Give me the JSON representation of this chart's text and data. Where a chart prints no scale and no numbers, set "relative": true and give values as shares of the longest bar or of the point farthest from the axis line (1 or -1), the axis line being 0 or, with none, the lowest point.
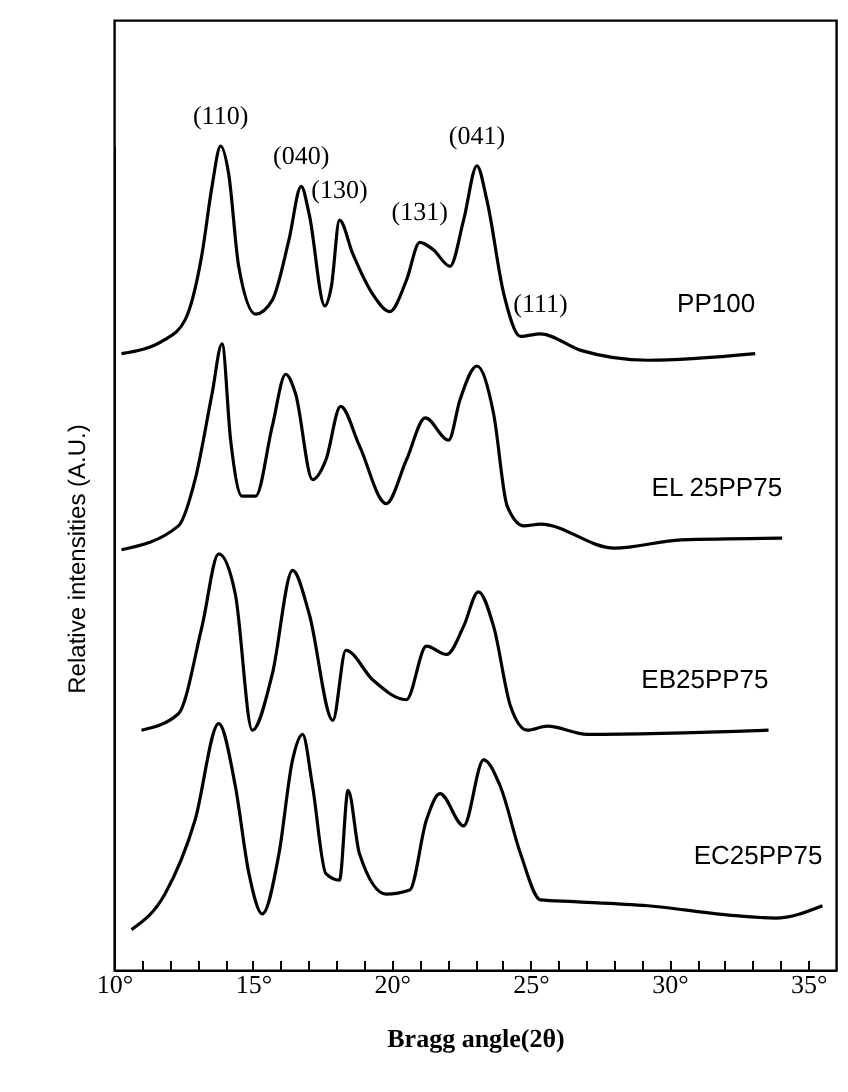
{
  "chart_data": {
    "type": "line",
    "relative": true,
    "xlabel": "Bragg angle(2θ)",
    "ylabel": "Relative intensities (A.U.)",
    "xlim": [
      10,
      36
    ],
    "xticks": [
      {
        "value": 10,
        "label": "10°"
      },
      {
        "value": 11,
        "label": null
      },
      {
        "value": 12,
        "label": null
      },
      {
        "value": 13,
        "label": null
      },
      {
        "value": 14,
        "label": null
      },
      {
        "value": 15,
        "label": "15°"
      },
      {
        "value": 16,
        "label": null
      },
      {
        "value": 17,
        "label": null
      },
      {
        "value": 18,
        "label": null
      },
      {
        "value": 19,
        "label": null
      },
      {
        "value": 20,
        "label": "20°"
      },
      {
        "value": 21,
        "label": null
      },
      {
        "value": 22,
        "label": null
      },
      {
        "value": 23,
        "label": null
      },
      {
        "value": 24,
        "label": null
      },
      {
        "value": 25,
        "label": "25°"
      },
      {
        "value": 26,
        "label": null
      },
      {
        "value": 27,
        "label": null
      },
      {
        "value": 28,
        "label": null
      },
      {
        "value": 29,
        "label": null
      },
      {
        "value": 30,
        "label": "30°"
      },
      {
        "value": 31,
        "label": null
      },
      {
        "value": 32,
        "label": null
      },
      {
        "value": 33,
        "label": null
      },
      {
        "value": 34,
        "label": null
      },
      {
        "value": 35,
        "label": "35°"
      }
    ],
    "grid": false,
    "marker": "none",
    "line_style": "solid",
    "series": [
      {
        "name": "PP100",
        "color": "#000000",
        "x": [
          10.27,
          11.83,
          12.56,
          13.17,
          13.53,
          13.84,
          14.13,
          14.49,
          15.1,
          15.7,
          16.3,
          16.74,
          17.03,
          17.59,
          17.83,
          18.12,
          18.6,
          19.32,
          19.93,
          20.53,
          21.01,
          21.5,
          22.1,
          22.59,
          23.07,
          23.43,
          24.04,
          24.64,
          25.36,
          26.81,
          29.22,
          33.09
        ],
        "values": [
          0.748,
          0.765,
          0.789,
          0.869,
          0.951,
          1,
          0.966,
          0.854,
          0.796,
          0.813,
          0.886,
          0.951,
          0.917,
          0.806,
          0.83,
          0.91,
          0.869,
          0.82,
          0.799,
          0.837,
          0.883,
          0.874,
          0.854,
          0.91,
          0.976,
          0.934,
          0.82,
          0.769,
          0.772,
          0.752,
          0.74,
          0.748
        ]
      },
      {
        "name": "EL 25PP75",
        "color": "#000000",
        "x": [
          10.27,
          12.32,
          12.92,
          13.53,
          13.89,
          14.2,
          14.61,
          15.1,
          15.7,
          16.18,
          16.54,
          17.15,
          17.63,
          18.16,
          18.84,
          19.8,
          20.53,
          21.21,
          22.05,
          22.46,
          23.07,
          23.67,
          24.16,
          24.76,
          25.36,
          28.02,
          30.43,
          34.06
        ],
        "values": [
          0.51,
          0.539,
          0.595,
          0.699,
          0.76,
          0.643,
          0.575,
          0.575,
          0.66,
          0.723,
          0.699,
          0.595,
          0.619,
          0.684,
          0.636,
          0.566,
          0.619,
          0.67,
          0.643,
          0.692,
          0.733,
          0.675,
          0.563,
          0.539,
          0.541,
          0.512,
          0.522,
          0.524
        ]
      },
      {
        "name": "EB25PP75",
        "color": "#000000",
        "x": [
          10.99,
          12.32,
          13.17,
          13.77,
          14.37,
          14.98,
          15.7,
          16.43,
          17.03,
          17.88,
          18.35,
          19.32,
          20.53,
          21.25,
          21.98,
          22.59,
          23.12,
          23.67,
          24.28,
          24.88,
          25.6,
          27.05,
          33.57
        ],
        "values": [
          0.291,
          0.311,
          0.417,
          0.505,
          0.456,
          0.291,
          0.359,
          0.485,
          0.432,
          0.303,
          0.388,
          0.352,
          0.328,
          0.393,
          0.383,
          0.417,
          0.459,
          0.417,
          0.32,
          0.291,
          0.296,
          0.286,
          0.291
        ]
      },
      {
        "name": "EC25PP75",
        "color": "#000000",
        "x": [
          10.63,
          11.83,
          12.92,
          13.77,
          14.37,
          14.86,
          15.34,
          15.94,
          16.43,
          16.79,
          17.15,
          17.63,
          18.12,
          18.43,
          18.84,
          19.8,
          20.65,
          21.25,
          21.74,
          22.59,
          23.31,
          23.91,
          24.64,
          25.36,
          26.57,
          29.22,
          32.37,
          33.82,
          35.51
        ],
        "values": [
          0.049,
          0.092,
          0.182,
          0.299,
          0.223,
          0.117,
          0.068,
          0.141,
          0.255,
          0.286,
          0.223,
          0.117,
          0.109,
          0.218,
          0.141,
          0.092,
          0.097,
          0.182,
          0.214,
          0.175,
          0.255,
          0.223,
          0.141,
          0.085,
          0.083,
          0.078,
          0.066,
          0.063,
          0.078
        ]
      }
    ],
    "annotations": [
      {
        "text": "(110)",
        "x": 13.84,
        "y": 1
      },
      {
        "text": "(040)",
        "x": 16.74,
        "y": 0.951
      },
      {
        "text": "(130)",
        "x": 18.12,
        "y": 0.91
      },
      {
        "text": "(131)",
        "x": 21.01,
        "y": 0.883
      },
      {
        "text": "(041)",
        "x": 23.07,
        "y": 0.976
      },
      {
        "text": "(111)",
        "x": 25.36,
        "y": 0.772
      }
    ]
  }
}
